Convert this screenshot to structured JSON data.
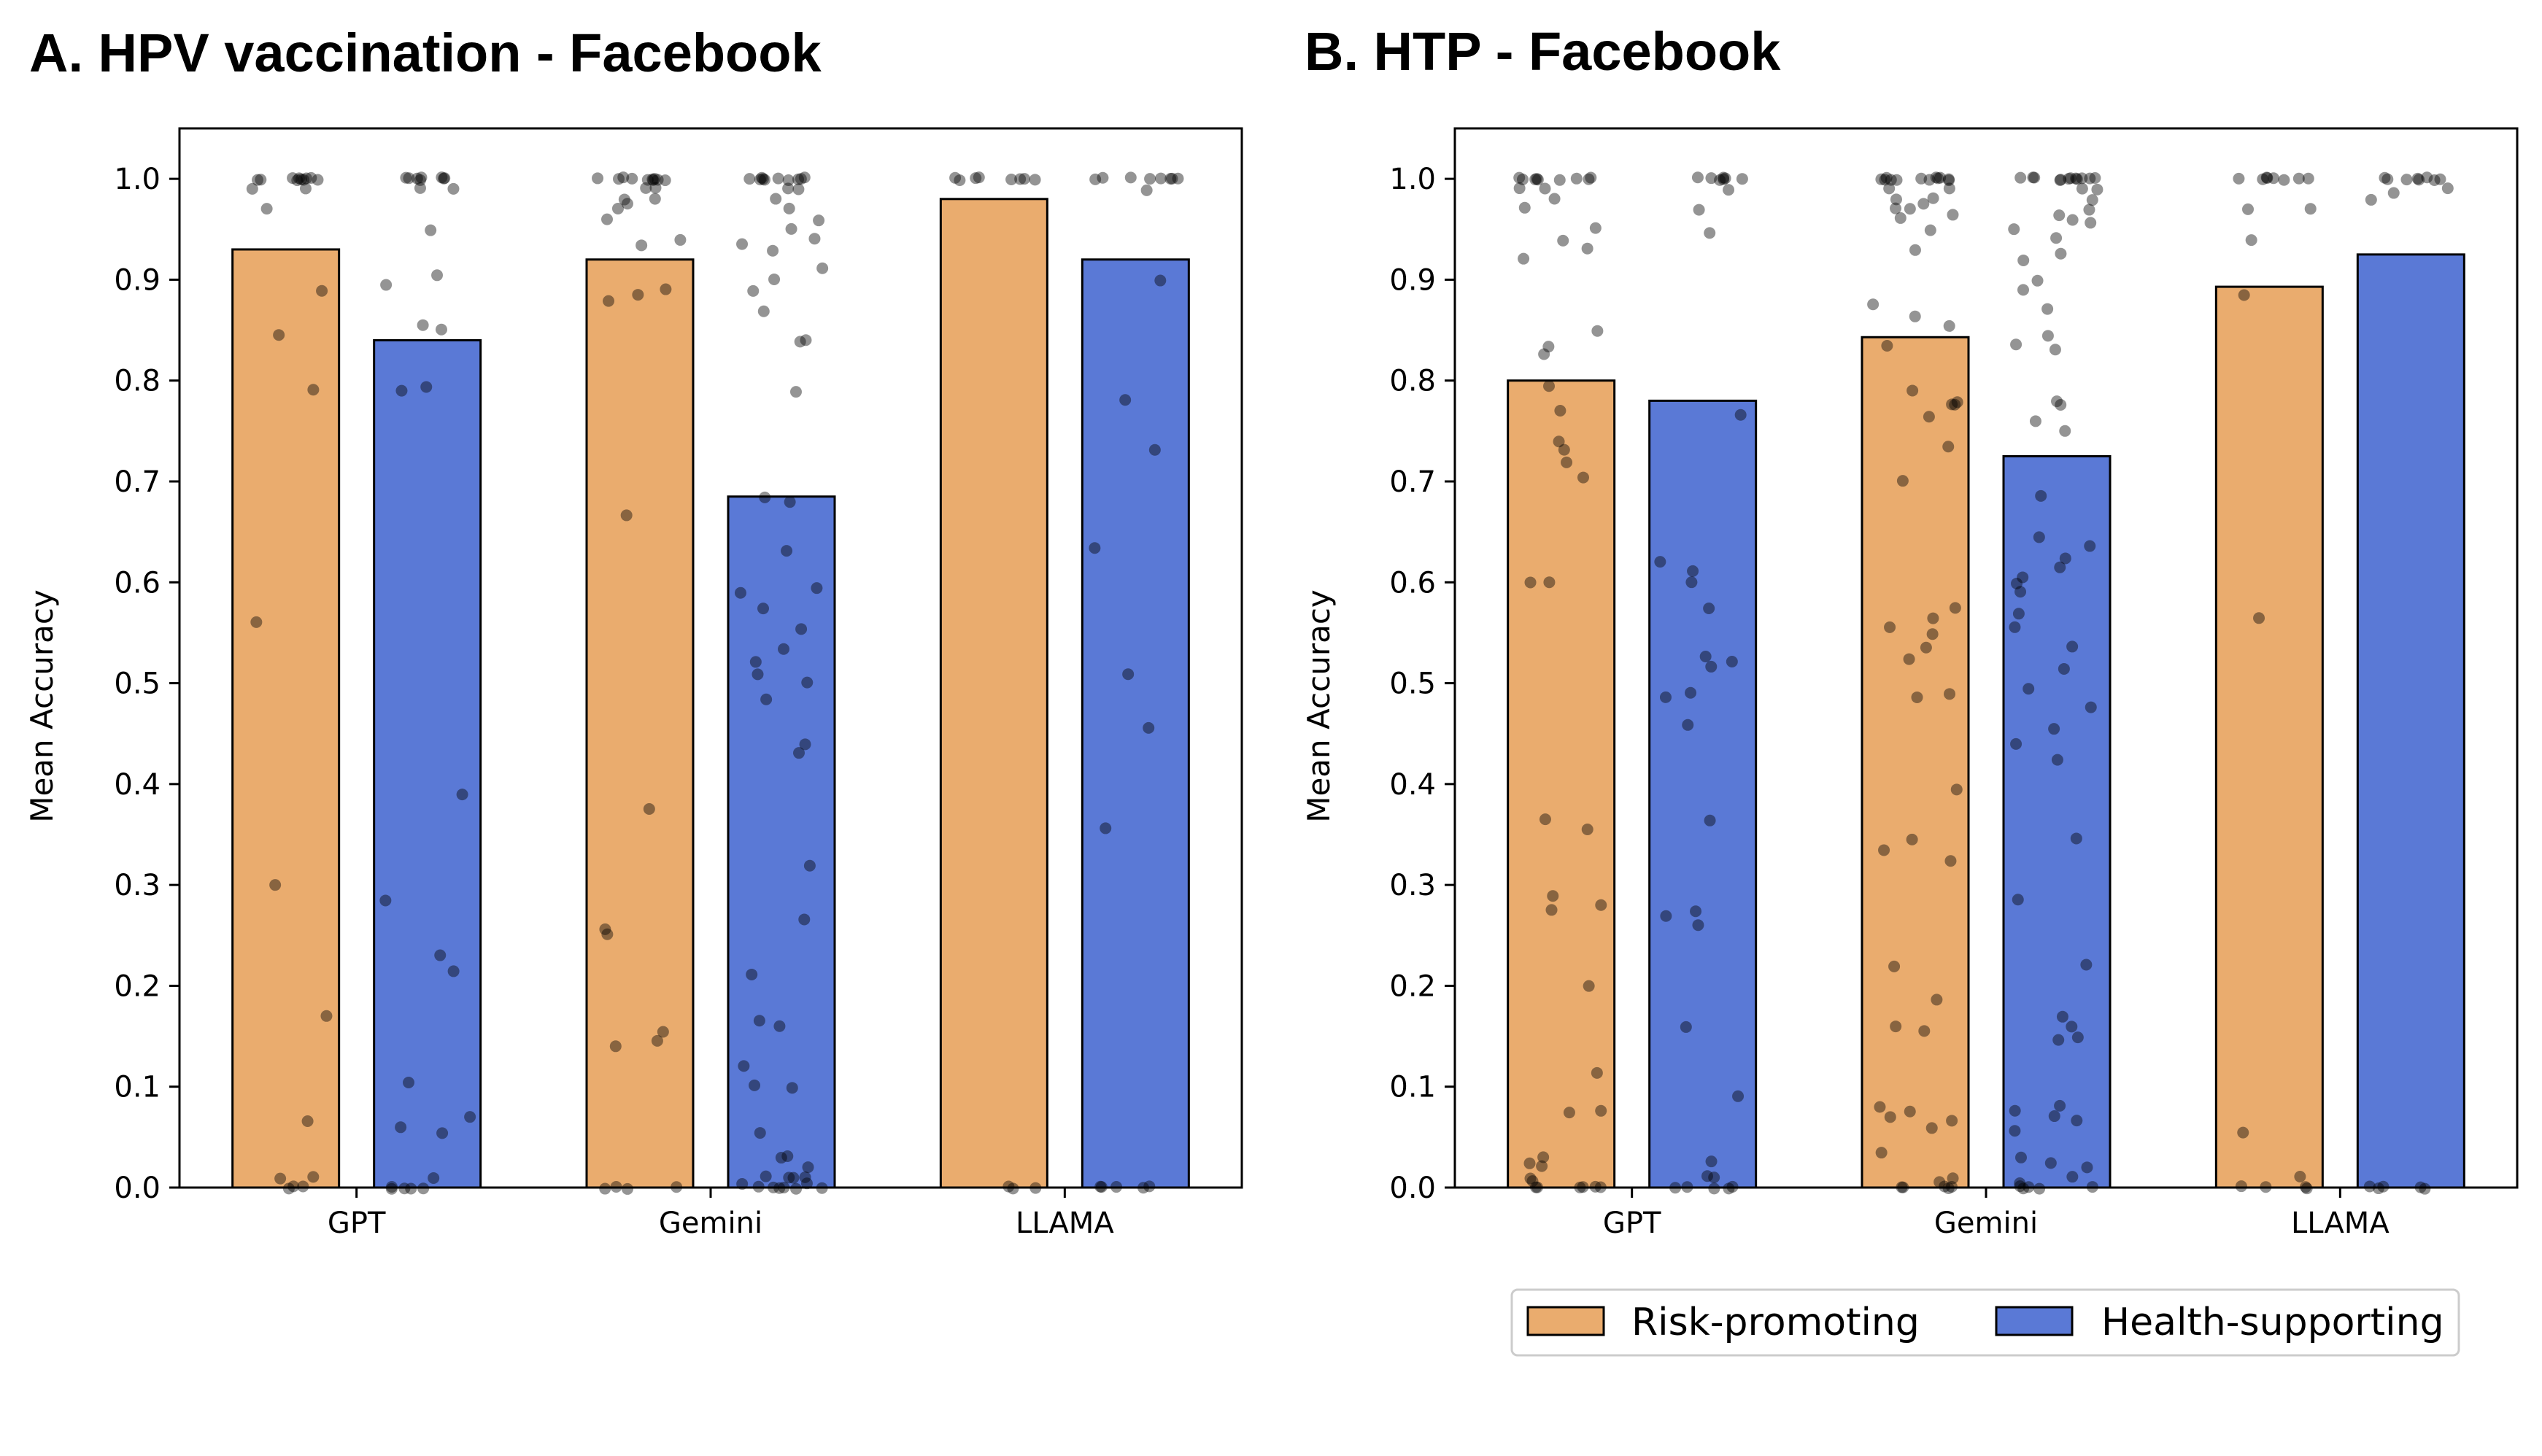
{
  "chart_data": [
    {
      "type": "bar",
      "title": "A. HPV vaccination - Facebook",
      "xlabel": "",
      "ylabel": "Mean Accuracy",
      "ylim": [
        0,
        1.05
      ],
      "yticks": [
        "0.0",
        "0.1",
        "0.2",
        "0.3",
        "0.4",
        "0.5",
        "0.6",
        "0.7",
        "0.8",
        "0.9",
        "1.0"
      ],
      "categories": [
        "GPT",
        "Gemini",
        "LLAMA"
      ],
      "series": [
        {
          "name": "Risk-promoting",
          "values": [
            0.93,
            0.92,
            0.98
          ]
        },
        {
          "name": "Health-supporting",
          "values": [
            0.84,
            0.685,
            0.92
          ]
        }
      ],
      "points": [
        {
          "cat": 0,
          "s": 0,
          "y": [
            1,
            1,
            1,
            1,
            1,
            1,
            1,
            1,
            1,
            1,
            0.99,
            0.99,
            0.97,
            0.89,
            0.845,
            0.79,
            0.56,
            0.3,
            0.17,
            0.065,
            0.01,
            0.01,
            0,
            0,
            0
          ]
        },
        {
          "cat": 0,
          "s": 1,
          "y": [
            1,
            1,
            1,
            1,
            1,
            1,
            1,
            1,
            0.99,
            0.99,
            0.95,
            0.905,
            0.895,
            0.855,
            0.85,
            0.795,
            0.79,
            0.39,
            0.285,
            0.23,
            0.215,
            0.105,
            0.07,
            0.06,
            0.055,
            0.01,
            0,
            0,
            0,
            0,
            0
          ]
        },
        {
          "cat": 1,
          "s": 0,
          "y": [
            1,
            1,
            1,
            1,
            1,
            1,
            1,
            1,
            1,
            1,
            0.99,
            0.99,
            0.98,
            0.98,
            0.975,
            0.97,
            0.96,
            0.94,
            0.935,
            0.89,
            0.885,
            0.88,
            0.665,
            0.375,
            0.255,
            0.25,
            0.155,
            0.145,
            0.14,
            0,
            0,
            0,
            0
          ]
        },
        {
          "cat": 1,
          "s": 1,
          "y": [
            1,
            1,
            1,
            1,
            1,
            1,
            1,
            1,
            1,
            1,
            0.99,
            0.99,
            0.98,
            0.97,
            0.96,
            0.95,
            0.94,
            0.935,
            0.93,
            0.91,
            0.9,
            0.89,
            0.87,
            0.84,
            0.84,
            0.79,
            0.685,
            0.68,
            0.63,
            0.595,
            0.59,
            0.575,
            0.555,
            0.535,
            0.52,
            0.51,
            0.5,
            0.485,
            0.44,
            0.43,
            0.32,
            0.265,
            0.21,
            0.165,
            0.16,
            0.12,
            0.1,
            0.1,
            0.055,
            0.03,
            0.03,
            0.02,
            0.01,
            0.01,
            0.01,
            0.01,
            0.005,
            0.005,
            0,
            0,
            0,
            0,
            0,
            0
          ]
        },
        {
          "cat": 2,
          "s": 0,
          "y": [
            1,
            1,
            1,
            1,
            1,
            1,
            1,
            1,
            0,
            0,
            0
          ]
        },
        {
          "cat": 2,
          "s": 1,
          "y": [
            1,
            1,
            1,
            1,
            1,
            1,
            1,
            1,
            0.99,
            0.9,
            0.78,
            0.73,
            0.635,
            0.51,
            0.455,
            0.355,
            0,
            0,
            0,
            0,
            0
          ]
        }
      ]
    },
    {
      "type": "bar",
      "title": "B. HTP - Facebook",
      "xlabel": "",
      "ylabel": "Mean Accuracy",
      "ylim": [
        0,
        1.05
      ],
      "yticks": [
        "0.0",
        "0.1",
        "0.2",
        "0.3",
        "0.4",
        "0.5",
        "0.6",
        "0.7",
        "0.8",
        "0.9",
        "1.0"
      ],
      "categories": [
        "GPT",
        "Gemini",
        "LLAMA"
      ],
      "series": [
        {
          "name": "Risk-promoting",
          "values": [
            0.8,
            0.843,
            0.893
          ]
        },
        {
          "name": "Health-supporting",
          "values": [
            0.78,
            0.725,
            0.925
          ]
        }
      ],
      "points": [
        {
          "cat": 0,
          "s": 0,
          "y": [
            1,
            1,
            1,
            1,
            1,
            1,
            1,
            1,
            1,
            0.99,
            0.99,
            0.98,
            0.97,
            0.95,
            0.94,
            0.93,
            0.92,
            0.85,
            0.835,
            0.825,
            0.795,
            0.77,
            0.74,
            0.73,
            0.72,
            0.705,
            0.6,
            0.6,
            0.365,
            0.355,
            0.29,
            0.28,
            0.275,
            0.2,
            0.115,
            0.075,
            0.075,
            0.03,
            0.025,
            0.02,
            0.01,
            0.005,
            0,
            0,
            0,
            0,
            0,
            0
          ]
        },
        {
          "cat": 0,
          "s": 1,
          "y": [
            1,
            1,
            1,
            1,
            1,
            1,
            1,
            0.99,
            0.97,
            0.945,
            0.765,
            0.62,
            0.61,
            0.6,
            0.575,
            0.525,
            0.52,
            0.515,
            0.49,
            0.485,
            0.46,
            0.365,
            0.275,
            0.27,
            0.26,
            0.16,
            0.09,
            0.025,
            0.01,
            0.01,
            0,
            0,
            0,
            0,
            0
          ]
        },
        {
          "cat": 1,
          "s": 0,
          "y": [
            1,
            1,
            1,
            1,
            1,
            1,
            1,
            1,
            1,
            1,
            1,
            1,
            0.99,
            0.99,
            0.98,
            0.98,
            0.975,
            0.97,
            0.97,
            0.965,
            0.96,
            0.95,
            0.93,
            0.875,
            0.865,
            0.855,
            0.835,
            0.79,
            0.78,
            0.775,
            0.775,
            0.765,
            0.735,
            0.7,
            0.575,
            0.565,
            0.555,
            0.55,
            0.535,
            0.525,
            0.49,
            0.485,
            0.395,
            0.345,
            0.335,
            0.325,
            0.22,
            0.185,
            0.16,
            0.155,
            0.08,
            0.075,
            0.07,
            0.065,
            0.06,
            0.035,
            0.01,
            0.005,
            0,
            0,
            0,
            0,
            0
          ]
        },
        {
          "cat": 1,
          "s": 1,
          "y": [
            1,
            1,
            1,
            1,
            1,
            1,
            1,
            1,
            1,
            1,
            1,
            1,
            0.99,
            0.99,
            0.98,
            0.97,
            0.965,
            0.96,
            0.955,
            0.95,
            0.94,
            0.925,
            0.92,
            0.9,
            0.89,
            0.87,
            0.845,
            0.835,
            0.83,
            0.78,
            0.775,
            0.76,
            0.75,
            0.685,
            0.645,
            0.635,
            0.625,
            0.615,
            0.605,
            0.6,
            0.59,
            0.57,
            0.555,
            0.535,
            0.515,
            0.495,
            0.475,
            0.455,
            0.44,
            0.425,
            0.345,
            0.285,
            0.22,
            0.17,
            0.16,
            0.15,
            0.145,
            0.08,
            0.075,
            0.07,
            0.065,
            0.055,
            0.03,
            0.025,
            0.02,
            0.01,
            0.005,
            0,
            0,
            0,
            0,
            0
          ]
        },
        {
          "cat": 2,
          "s": 0,
          "y": [
            1,
            1,
            1,
            1,
            1,
            1,
            1,
            1,
            0.97,
            0.97,
            0.94,
            0.885,
            0.565,
            0.055,
            0.01,
            0,
            0,
            0,
            0
          ]
        },
        {
          "cat": 2,
          "s": 1,
          "y": [
            1,
            1,
            1,
            1,
            1,
            1,
            1,
            1,
            0.99,
            0.985,
            0.98,
            0,
            0,
            0,
            0,
            0
          ]
        }
      ]
    }
  ],
  "legend": {
    "items": [
      {
        "label": "Risk-promoting",
        "color": "#EAAC6E"
      },
      {
        "label": "Health-supporting",
        "color": "#5A79D6"
      }
    ]
  },
  "colors": {
    "risk": "#EAAC6E",
    "health": "#5A79D6",
    "point": "#000000"
  }
}
